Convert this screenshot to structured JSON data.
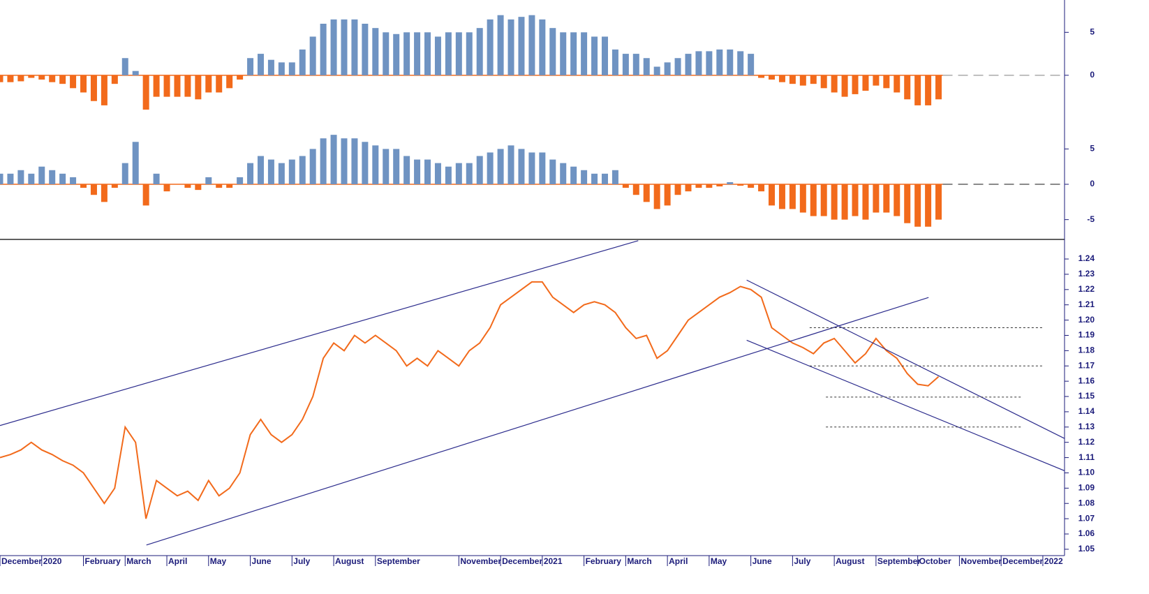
{
  "chart_data": [
    {
      "type": "bar",
      "x": [
        0,
        0.25,
        0.5,
        0.75,
        1,
        1.25,
        1.5,
        1.75,
        2,
        2.25,
        2.5,
        2.75,
        3,
        3.25,
        3.5,
        3.75,
        4,
        4.25,
        4.5,
        4.75,
        5,
        5.25,
        5.5,
        5.75,
        6,
        6.25,
        6.5,
        6.75,
        7,
        7.25,
        7.5,
        7.75,
        8,
        8.25,
        8.5,
        8.75,
        9,
        9.25,
        9.5,
        9.75,
        10,
        10.25,
        10.5,
        10.75,
        11,
        11.25,
        11.5,
        11.75,
        12,
        12.25,
        12.5,
        12.75,
        13,
        13.25,
        13.5,
        13.75,
        14,
        14.25,
        14.5,
        14.75,
        15,
        15.25,
        15.5,
        15.75,
        16,
        16.25,
        16.5,
        16.75,
        17,
        17.25,
        17.5,
        17.75,
        18,
        18.25,
        18.5,
        18.75,
        19,
        19.25,
        19.5,
        19.75,
        20,
        20.25,
        20.5,
        20.75,
        21,
        21.25,
        21.5,
        21.75,
        22,
        22.25,
        22.5
      ],
      "values": [
        -0.8,
        -0.8,
        -0.7,
        -0.3,
        -0.5,
        -0.8,
        -1.0,
        -1.5,
        -2.0,
        -3.0,
        -3.5,
        -1.0,
        2.0,
        0.5,
        -4.0,
        -2.5,
        -2.5,
        -2.5,
        -2.5,
        -2.8,
        -2.0,
        -2.0,
        -1.5,
        -0.5,
        2.0,
        2.5,
        1.8,
        1.5,
        1.5,
        3.0,
        4.5,
        6.0,
        6.5,
        6.5,
        6.5,
        6.0,
        5.5,
        5.0,
        4.8,
        5.0,
        5.0,
        5.0,
        4.5,
        5.0,
        5.0,
        5.0,
        5.5,
        6.5,
        7.0,
        6.5,
        6.8,
        7.0,
        6.5,
        5.5,
        5.0,
        5.0,
        5.0,
        4.5,
        4.5,
        3.0,
        2.5,
        2.5,
        2.0,
        1.0,
        1.5,
        2.0,
        2.5,
        2.8,
        2.8,
        3.0,
        3.0,
        2.8,
        2.5,
        -0.3,
        -0.5,
        -0.8,
        -1.0,
        -1.2,
        -1.0,
        -1.5,
        -2.0,
        -2.5,
        -2.2,
        -1.8,
        -1.2,
        -1.5,
        -2.0,
        -2.8,
        -3.5,
        -3.5,
        -2.8
      ],
      "positive_color": "#6f93c2",
      "negative_color": "#f26a1b",
      "xlim": [
        0,
        25.52
      ],
      "ylim": [
        -5.7,
        8.6
      ],
      "yticks": [
        0,
        5
      ],
      "zero_line": true
    },
    {
      "type": "bar",
      "x": [
        0,
        0.25,
        0.5,
        0.75,
        1,
        1.25,
        1.5,
        1.75,
        2,
        2.25,
        2.5,
        2.75,
        3,
        3.25,
        3.5,
        3.75,
        4,
        4.25,
        4.5,
        4.75,
        5,
        5.25,
        5.5,
        5.75,
        6,
        6.25,
        6.5,
        6.75,
        7,
        7.25,
        7.5,
        7.75,
        8,
        8.25,
        8.5,
        8.75,
        9,
        9.25,
        9.5,
        9.75,
        10,
        10.25,
        10.5,
        10.75,
        11,
        11.25,
        11.5,
        11.75,
        12,
        12.25,
        12.5,
        12.75,
        13,
        13.25,
        13.5,
        13.75,
        14,
        14.25,
        14.5,
        14.75,
        15,
        15.25,
        15.5,
        15.75,
        16,
        16.25,
        16.5,
        16.75,
        17,
        17.25,
        17.5,
        17.75,
        18,
        18.25,
        18.5,
        18.75,
        19,
        19.25,
        19.5,
        19.75,
        20,
        20.25,
        20.5,
        20.75,
        21,
        21.25,
        21.5,
        21.75,
        22,
        22.25,
        22.5
      ],
      "values": [
        1.5,
        1.5,
        2.0,
        1.5,
        2.5,
        2.0,
        1.5,
        1.0,
        -0.5,
        -1.5,
        -2.5,
        -0.5,
        3.0,
        6.0,
        -3.0,
        1.5,
        -1.0,
        0.0,
        -0.5,
        -0.8,
        1.0,
        -0.5,
        -0.5,
        1.0,
        3.0,
        4.0,
        3.5,
        3.0,
        3.5,
        4.0,
        5.0,
        6.5,
        7.0,
        6.5,
        6.5,
        6.0,
        5.5,
        5.0,
        5.0,
        4.0,
        3.5,
        3.5,
        3.0,
        2.5,
        3.0,
        3.0,
        4.0,
        4.5,
        5.0,
        5.5,
        5.0,
        4.5,
        4.5,
        3.5,
        3.0,
        2.5,
        2.0,
        1.5,
        1.5,
        2.0,
        -0.5,
        -1.5,
        -2.5,
        -3.5,
        -3.0,
        -1.5,
        -1.0,
        -0.5,
        -0.5,
        -0.3,
        0.3,
        -0.2,
        -0.5,
        -1.0,
        -3.0,
        -3.5,
        -3.5,
        -4.0,
        -4.5,
        -4.5,
        -5.0,
        -5.0,
        -4.5,
        -5.0,
        -4.0,
        -4.0,
        -4.5,
        -5.5,
        -6.0,
        -6.0,
        -5.0
      ],
      "positive_color": "#6f93c2",
      "negative_color": "#f26a1b",
      "xlim": [
        0,
        25.52
      ],
      "ylim": [
        -7.8,
        8.1
      ],
      "yticks": [
        -5,
        0,
        5
      ],
      "zero_line": true
    },
    {
      "type": "line",
      "x": [
        0,
        0.25,
        0.5,
        0.75,
        1,
        1.25,
        1.5,
        1.75,
        2,
        2.25,
        2.5,
        2.75,
        3,
        3.25,
        3.5,
        3.75,
        4,
        4.25,
        4.5,
        4.75,
        5,
        5.25,
        5.5,
        5.75,
        6,
        6.25,
        6.5,
        6.75,
        7,
        7.25,
        7.5,
        7.75,
        8,
        8.25,
        8.5,
        8.75,
        9,
        9.25,
        9.5,
        9.75,
        10,
        10.25,
        10.5,
        10.75,
        11,
        11.25,
        11.5,
        11.75,
        12,
        12.25,
        12.5,
        12.75,
        13,
        13.25,
        13.5,
        13.75,
        14,
        14.25,
        14.5,
        14.75,
        15,
        15.25,
        15.5,
        15.75,
        16,
        16.25,
        16.5,
        16.75,
        17,
        17.25,
        17.5,
        17.75,
        18,
        18.25,
        18.5,
        18.75,
        19,
        19.25,
        19.5,
        19.75,
        20,
        20.25,
        20.5,
        20.75,
        21,
        21.25,
        21.5,
        21.75,
        22,
        22.25,
        22.5
      ],
      "values": [
        1.11,
        1.112,
        1.115,
        1.12,
        1.115,
        1.112,
        1.108,
        1.105,
        1.1,
        1.09,
        1.08,
        1.09,
        1.13,
        1.12,
        1.07,
        1.095,
        1.09,
        1.085,
        1.088,
        1.082,
        1.095,
        1.085,
        1.09,
        1.1,
        1.125,
        1.135,
        1.125,
        1.12,
        1.125,
        1.135,
        1.15,
        1.175,
        1.185,
        1.18,
        1.19,
        1.185,
        1.19,
        1.185,
        1.18,
        1.17,
        1.175,
        1.17,
        1.18,
        1.175,
        1.17,
        1.18,
        1.185,
        1.195,
        1.21,
        1.215,
        1.22,
        1.225,
        1.225,
        1.215,
        1.21,
        1.205,
        1.21,
        1.212,
        1.21,
        1.205,
        1.195,
        1.188,
        1.19,
        1.175,
        1.18,
        1.19,
        1.2,
        1.205,
        1.21,
        1.215,
        1.218,
        1.222,
        1.22,
        1.215,
        1.195,
        1.19,
        1.185,
        1.182,
        1.178,
        1.185,
        1.188,
        1.18,
        1.172,
        1.178,
        1.188,
        1.18,
        1.175,
        1.165,
        1.158,
        1.157,
        1.163
      ],
      "color": "#f26a1b",
      "xlim": [
        0,
        25.52
      ],
      "ylim": [
        1.0463,
        1.2519
      ],
      "yticks": [
        1.05,
        1.06,
        1.07,
        1.08,
        1.09,
        {
          "value": 1.1,
          "label": "1.10"
        },
        1.11,
        1.12,
        1.13,
        1.14,
        1.15,
        1.16,
        1.17,
        1.18,
        1.19,
        {
          "value": 1.2,
          "label": "1.20"
        },
        1.21,
        1.22,
        1.23,
        1.24
      ],
      "xticks": [
        {
          "value": 0,
          "label": "December"
        },
        {
          "value": 1,
          "label": "2020"
        },
        {
          "value": 2,
          "label": "February"
        },
        {
          "value": 3,
          "label": "March"
        },
        {
          "value": 4,
          "label": "April"
        },
        {
          "value": 5,
          "label": "May"
        },
        {
          "value": 6,
          "label": "June"
        },
        {
          "value": 7,
          "label": "July"
        },
        {
          "value": 8,
          "label": "August"
        },
        {
          "value": 9,
          "label": "September"
        },
        {
          "value": 11,
          "label": "November"
        },
        {
          "value": 12,
          "label": "December"
        },
        {
          "value": 13,
          "label": "2021"
        },
        {
          "value": 14,
          "label": "February"
        },
        {
          "value": 15,
          "label": "March"
        },
        {
          "value": 16,
          "label": "April"
        },
        {
          "value": 17,
          "label": "May"
        },
        {
          "value": 18,
          "label": "June"
        },
        {
          "value": 19,
          "label": "July"
        },
        {
          "value": 20,
          "label": "August"
        },
        {
          "value": 21,
          "label": "September"
        },
        {
          "value": 22,
          "label": "October"
        },
        {
          "value": 23,
          "label": "November"
        },
        {
          "value": 24,
          "label": "December"
        },
        {
          "value": 25,
          "label": "2022"
        }
      ],
      "trendlines": [
        {
          "x": [
            0,
            15.3
          ],
          "y": [
            1.131,
            1.252
          ],
          "color": "#2b2b8c"
        },
        {
          "x": [
            3.51,
            22.26
          ],
          "y": [
            1.0528,
            1.2148
          ],
          "color": "#2b2b8c"
        },
        {
          "x": [
            17.9,
            25.52
          ],
          "y": [
            1.2262,
            1.1225
          ],
          "color": "#2b2b8c"
        },
        {
          "x": [
            17.9,
            25.52
          ],
          "y": [
            1.1868,
            1.1014
          ],
          "color": "#2b2b8c"
        }
      ],
      "levels": [
        {
          "value": 1.195,
          "x": [
            19.41,
            25.02
          ]
        },
        {
          "value": 1.17,
          "x": [
            19.41,
            25.02
          ]
        },
        {
          "value": 1.1496,
          "x": [
            19.8,
            24.51
          ]
        },
        {
          "value": 1.13,
          "x": [
            19.8,
            24.51
          ]
        }
      ]
    }
  ]
}
